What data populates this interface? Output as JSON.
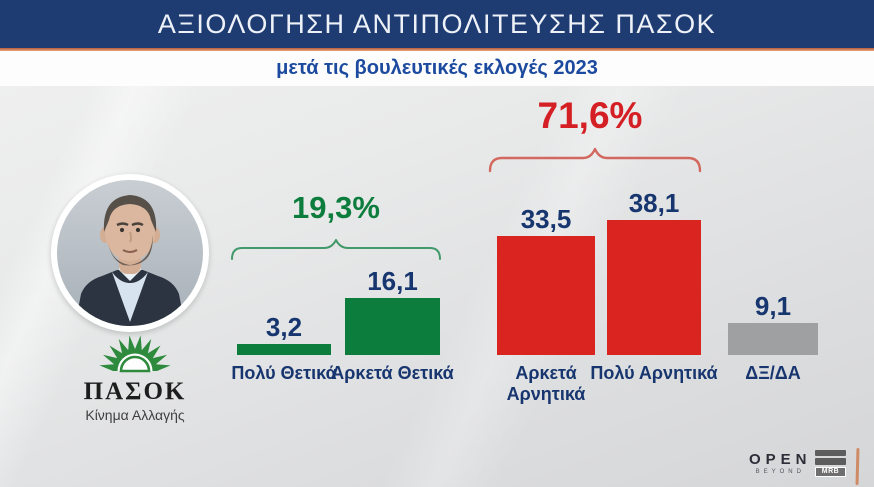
{
  "header": {
    "title": "ΑΞΙΟΛΟΓΗΣΗ ΑΝΤΙΠΟΛΙΤΕΥΣΗΣ ΠΑΣΟΚ",
    "subtitle": "μετά τις βουλευτικές εκλογές 2023"
  },
  "party": {
    "name": "ΠΑΣΟΚ",
    "tagline": "Κίνημα Αλλαγής"
  },
  "chart_data": {
    "type": "bar",
    "title": "ΑΞΙΟΛΟΓΗΣΗ ΑΝΤΙΠΟΛΙΤΕΥΣΗΣ ΠΑΣΟΚ",
    "subtitle": "μετά τις βουλευτικές εκλογές 2023",
    "categories": [
      "Πολύ Θετικά",
      "Αρκετά Θετικά",
      "Αρκετά Αρνητικά",
      "Πολύ Αρνητικά",
      "ΔΞ/ΔΑ"
    ],
    "values": [
      3.2,
      16.1,
      33.5,
      38.1,
      9.1
    ],
    "value_labels": [
      "3,2",
      "16,1",
      "33,5",
      "38,1",
      "9,1"
    ],
    "bar_colors": [
      "#0d7d3e",
      "#0d7d3e",
      "#d9241f",
      "#d9241f",
      "#9fa0a2"
    ],
    "groups": [
      {
        "label": "19,3%",
        "sum": 19.3,
        "bars": [
          "Πολύ Θετικά",
          "Αρκετά Θετικά"
        ],
        "color": "#0d7d3e"
      },
      {
        "label": "71,6%",
        "sum": 71.6,
        "bars": [
          "Αρκετά Αρνητικά",
          "Πολύ Αρνητικά"
        ],
        "color": "#d41f24"
      }
    ],
    "ylim": [
      0,
      40
    ],
    "grid": false,
    "legend": false
  },
  "branding": {
    "channel": "OPEN",
    "channel_sub": "BEYOND",
    "agency": "MRB"
  },
  "colors": {
    "navy_header": "#1e3c72",
    "accent_orange": "#dd8a5e",
    "subtitle_blue": "#1b4a9e",
    "value_navy": "#17356e",
    "green": "#0d7d3e",
    "green_bracket": "#43996b",
    "red": "#d9241f",
    "red_accent": "#d41f24",
    "red_bracket": "#d2685e",
    "gray_bar": "#9fa0a2"
  }
}
